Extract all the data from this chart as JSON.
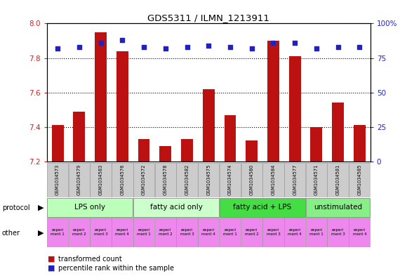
{
  "title": "GDS5311 / ILMN_1213911",
  "samples": [
    "GSM1034573",
    "GSM1034579",
    "GSM1034583",
    "GSM1034576",
    "GSM1034572",
    "GSM1034578",
    "GSM1034582",
    "GSM1034575",
    "GSM1034574",
    "GSM1034580",
    "GSM1034584",
    "GSM1034577",
    "GSM1034571",
    "GSM1034581",
    "GSM1034585"
  ],
  "transformed_count": [
    7.41,
    7.49,
    7.95,
    7.84,
    7.33,
    7.29,
    7.33,
    7.62,
    7.47,
    7.32,
    7.9,
    7.81,
    7.4,
    7.54,
    7.41
  ],
  "percentile_rank": [
    82,
    83,
    86,
    88,
    83,
    82,
    83,
    84,
    83,
    82,
    86,
    86,
    82,
    83,
    83
  ],
  "ylim_left": [
    7.2,
    8.0
  ],
  "ylim_right": [
    0,
    100
  ],
  "yticks_left": [
    7.2,
    7.4,
    7.6,
    7.8,
    8.0
  ],
  "yticks_right": [
    0,
    25,
    50,
    75,
    100
  ],
  "groups": [
    {
      "label": "LPS only",
      "count": 4,
      "color": "#bbffbb"
    },
    {
      "label": "fatty acid only",
      "count": 4,
      "color": "#ccffcc"
    },
    {
      "label": "fatty acid + LPS",
      "count": 4,
      "color": "#44dd44"
    },
    {
      "label": "unstimulated",
      "count": 3,
      "color": "#88ee88"
    }
  ],
  "other_colors": [
    "#ee88ee",
    "#ee88ee",
    "#ee88ee",
    "#ee88ee",
    "#ee88ee",
    "#ee88ee",
    "#ee88ee",
    "#ee88ee",
    "#ee88ee",
    "#ee88ee",
    "#ee88ee",
    "#ee88ee",
    "#ee88ee",
    "#ee88ee",
    "#ee88ee"
  ],
  "other_labels": [
    "experi\nment 1",
    "experi\nment 2",
    "experi\nment 3",
    "experi\nment 4",
    "experi\nment 1",
    "experi\nment 2",
    "experi\nment 3",
    "experi\nment 4",
    "experi\nment 1",
    "experi\nment 2",
    "experi\nment 3",
    "experi\nment 4",
    "experi\nment 1",
    "experi\nment 3",
    "experi\nment 4"
  ],
  "bar_color": "#bb1111",
  "dot_color": "#2222bb",
  "bg_color": "#ffffff",
  "left_tick_color": "#cc2222",
  "right_tick_color": "#2222cc"
}
